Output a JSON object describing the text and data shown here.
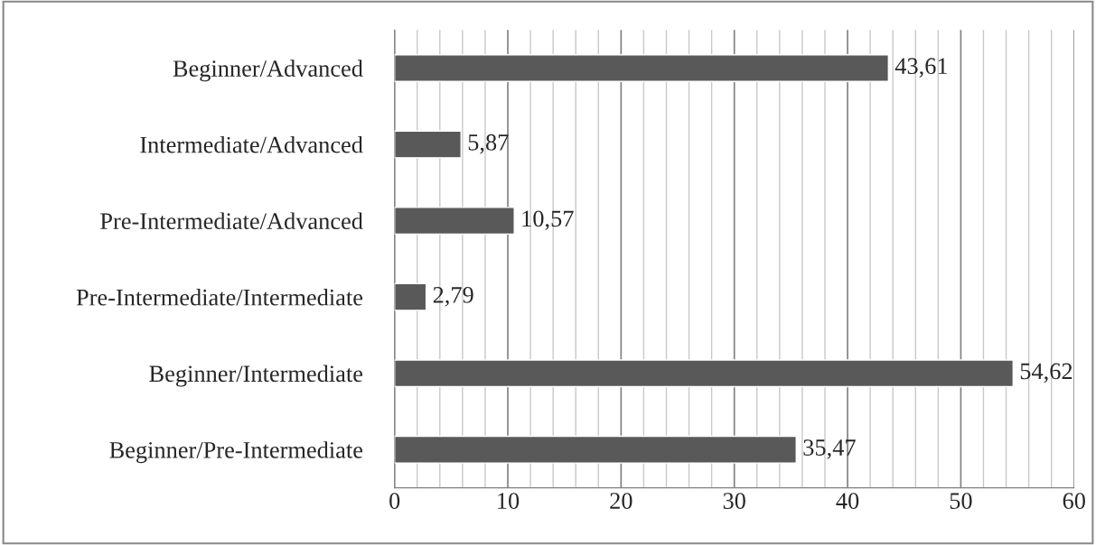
{
  "chart_data": {
    "type": "bar",
    "orientation": "horizontal",
    "categories": [
      "Beginner/Advanced",
      "Intermediate/Advanced",
      "Pre-Intermediate/Advanced",
      "Pre-Intermediate/Intermediate",
      "Beginner/Intermediate",
      "Beginner/Pre-Intermediate"
    ],
    "values": [
      43.61,
      5.87,
      10.57,
      2.79,
      54.62,
      35.47
    ],
    "value_labels": [
      "43,61",
      "5,87",
      "10,57",
      "2,79",
      "54,62",
      "35,47"
    ],
    "color": "#595959",
    "xlim": [
      0,
      60
    ],
    "xticks": [
      0,
      {
        "value": 2,
        "label": null
      },
      {
        "value": 4,
        "label": null
      },
      {
        "value": 6,
        "label": null
      },
      {
        "value": 8,
        "label": null
      },
      10,
      {
        "value": 12,
        "label": null
      },
      {
        "value": 14,
        "label": null
      },
      {
        "value": 16,
        "label": null
      },
      {
        "value": 18,
        "label": null
      },
      20,
      {
        "value": 22,
        "label": null
      },
      {
        "value": 24,
        "label": null
      },
      {
        "value": 26,
        "label": null
      },
      {
        "value": 28,
        "label": null
      },
      30,
      {
        "value": 32,
        "label": null
      },
      {
        "value": 34,
        "label": null
      },
      {
        "value": 36,
        "label": null
      },
      {
        "value": 38,
        "label": null
      },
      40,
      {
        "value": 42,
        "label": null
      },
      {
        "value": 44,
        "label": null
      },
      {
        "value": 46,
        "label": null
      },
      {
        "value": 48,
        "label": null
      },
      50,
      {
        "value": 52,
        "label": null
      },
      {
        "value": 54,
        "label": null
      },
      {
        "value": 56,
        "label": null
      },
      {
        "value": 58,
        "label": null
      },
      60
    ],
    "grid": "x"
  }
}
